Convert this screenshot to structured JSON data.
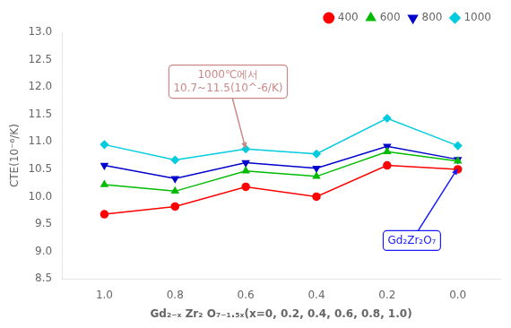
{
  "chart_data": {
    "type": "line",
    "x_label": "Gd₂₋ₓ Zr₂ O₇₋₁.₅ₓ(x=0, 0.2, 0.4, 0.6, 0.8, 1.0)",
    "y_label": "CTE(10⁻⁶/K)",
    "x": [
      1.0,
      0.8,
      0.6,
      0.4,
      0.2,
      0.0
    ],
    "series": [
      {
        "name": "400",
        "color": "#ff0000",
        "marker": "circle",
        "values": [
          9.68,
          9.82,
          10.18,
          10.0,
          10.57,
          10.5
        ]
      },
      {
        "name": "600",
        "color": "#00bb00",
        "marker": "triangle-up",
        "values": [
          10.22,
          10.1,
          10.47,
          10.37,
          10.82,
          10.65
        ]
      },
      {
        "name": "800",
        "color": "#0000cc",
        "marker": "triangle-down",
        "values": [
          10.57,
          10.33,
          10.62,
          10.52,
          10.92,
          10.68
        ]
      },
      {
        "name": "1000",
        "color": "#00ccdd",
        "marker": "diamond",
        "values": [
          10.95,
          10.67,
          10.87,
          10.78,
          11.43,
          10.93
        ]
      }
    ],
    "xlim": [
      1.12,
      -0.12
    ],
    "xticks": [
      {
        "value": 1.0,
        "label": "1.0"
      },
      0.8,
      0.6,
      0.4,
      0.2,
      {
        "value": 0.0,
        "label": "0.0"
      }
    ],
    "ylim": [
      8.5,
      13.0
    ],
    "yticks": [
      8.5,
      {
        "value": 9.0,
        "label": "9.0"
      },
      9.5,
      {
        "value": 10.0,
        "label": "10.0"
      },
      10.5,
      {
        "value": 11.0,
        "label": "11.0"
      },
      11.5,
      {
        "value": 12.0,
        "label": "12.0"
      },
      12.5,
      {
        "value": 13.0,
        "label": "13.0"
      }
    ],
    "grid": false,
    "legend": "upper right",
    "annotations": [
      {
        "text": "1000℃에서\n10.7~11.5(10^-6/K)",
        "x": 0.6,
        "y": 10.87,
        "text_x": 0.65,
        "text_y": 12.1,
        "color": "#cc8888"
      },
      {
        "text": "Gd₂Zr₂O₇",
        "x": 0.0,
        "y": 10.52,
        "text_x": 0.13,
        "text_y": 9.2,
        "color": "#1a1aff"
      }
    ]
  }
}
